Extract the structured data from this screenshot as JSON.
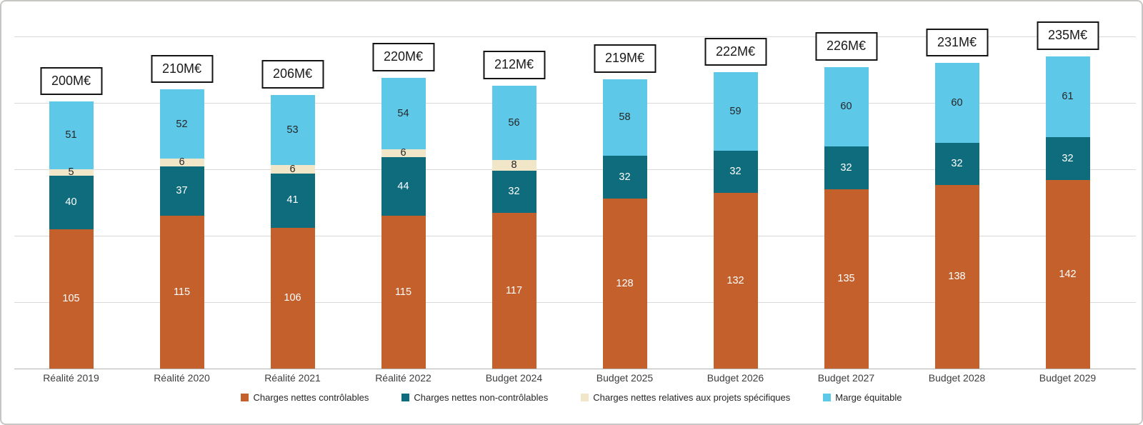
{
  "frame": {
    "background": "#FFFFFF",
    "border_color": "#C8C6C3"
  },
  "chart_data": {
    "type": "bar",
    "stacked": true,
    "title": "",
    "xlabel": "",
    "ylabel": "",
    "categories": [
      "Réalité 2019",
      "Réalité 2020",
      "Réalité 2021",
      "Réalité 2022",
      "Budget 2024",
      "Budget 2025",
      "Budget 2026",
      "Budget 2027",
      "Budget 2028",
      "Budget 2029"
    ],
    "total_labels": [
      "200M€",
      "210M€",
      "206M€",
      "220M€",
      "212M€",
      "219M€",
      "222M€",
      "226M€",
      "231M€",
      "235M€"
    ],
    "series": [
      {
        "name": "Charges nettes contrôlables",
        "color": "#C4602C",
        "label_color": "#FFFFFF",
        "values": [
          105,
          115,
          106,
          115,
          117,
          128,
          132,
          135,
          138,
          142
        ]
      },
      {
        "name": "Charges nettes non-contrôlables",
        "color": "#0F6C7C",
        "label_color": "#FFFFFF",
        "values": [
          40,
          37,
          41,
          44,
          32,
          32,
          32,
          32,
          32,
          32
        ]
      },
      {
        "name": "Charges nettes relatives aux projets spécifiques",
        "color": "#F2E6C8",
        "label_color": "#262626",
        "values": [
          5,
          6,
          6,
          6,
          8,
          0,
          0,
          0,
          0,
          0
        ]
      },
      {
        "name": "Marge équitable",
        "color": "#5EC8E8",
        "label_color": "#262626",
        "values": [
          51,
          52,
          53,
          54,
          56,
          58,
          59,
          60,
          60,
          61
        ]
      }
    ],
    "ylim": [
      0,
      250
    ],
    "gridline_step": 50,
    "grid": true,
    "y_axis_labels_visible": false,
    "legend_position": "bottom",
    "gridline_color": "#D9D9D9",
    "axis_line_color": "#B3B3B3",
    "total_box_border_color": "#141414"
  }
}
